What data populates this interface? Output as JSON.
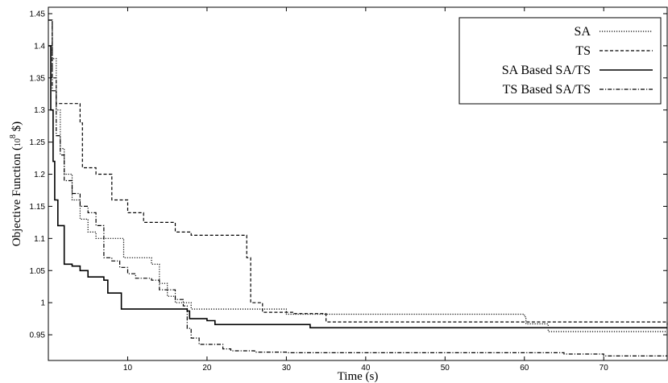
{
  "chart_data": {
    "type": "line",
    "xlabel": "Time (s)",
    "ylabel_main": "Objective Function (",
    "ylabel_unit": "10",
    "ylabel_exp": "8",
    "ylabel_tail": " $)",
    "xlim": [
      0,
      78
    ],
    "ylim": [
      0.91,
      1.46
    ],
    "xticks": [
      10,
      20,
      30,
      40,
      50,
      60,
      70
    ],
    "yticks": [
      0.95,
      1,
      1.05,
      1.1,
      1.15,
      1.2,
      1.25,
      1.3,
      1.35,
      1.4,
      1.45
    ],
    "grid": false,
    "legend_position": "top-right",
    "series": [
      {
        "name": "SA",
        "dash": "dotted",
        "points": [
          [
            0,
            1.44
          ],
          [
            0.5,
            1.38
          ],
          [
            1,
            1.3
          ],
          [
            1.5,
            1.24
          ],
          [
            2,
            1.2
          ],
          [
            3,
            1.16
          ],
          [
            4,
            1.13
          ],
          [
            5,
            1.11
          ],
          [
            6,
            1.1
          ],
          [
            9,
            1.1
          ],
          [
            9.5,
            1.07
          ],
          [
            13,
            1.06
          ],
          [
            14,
            1.03
          ],
          [
            15,
            1.01
          ],
          [
            16,
            1.0
          ],
          [
            18,
            0.99
          ],
          [
            30,
            0.982
          ],
          [
            60,
            0.978
          ],
          [
            60.2,
            0.967
          ],
          [
            63,
            0.955
          ],
          [
            78,
            0.955
          ]
        ]
      },
      {
        "name": "TS",
        "dash": "dashed",
        "points": [
          [
            0,
            1.44
          ],
          [
            0.5,
            1.35
          ],
          [
            1,
            1.31
          ],
          [
            4,
            1.28
          ],
          [
            4.3,
            1.21
          ],
          [
            6,
            1.2
          ],
          [
            8,
            1.16
          ],
          [
            10,
            1.14
          ],
          [
            12,
            1.125
          ],
          [
            16,
            1.11
          ],
          [
            18,
            1.105
          ],
          [
            23,
            1.105
          ],
          [
            25,
            1.07
          ],
          [
            25.5,
            1.0
          ],
          [
            27,
            0.985
          ],
          [
            31,
            0.983
          ],
          [
            35,
            0.97
          ],
          [
            78,
            0.965
          ]
        ]
      },
      {
        "name": "SA Based SA/TS",
        "dash": "solid",
        "points": [
          [
            0,
            1.4
          ],
          [
            0.3,
            1.3
          ],
          [
            0.6,
            1.22
          ],
          [
            0.8,
            1.16
          ],
          [
            1.2,
            1.12
          ],
          [
            2,
            1.06
          ],
          [
            3,
            1.057
          ],
          [
            4,
            1.05
          ],
          [
            5,
            1.04
          ],
          [
            7,
            1.035
          ],
          [
            7.5,
            1.015
          ],
          [
            9,
            1.015
          ],
          [
            9.2,
            0.99
          ],
          [
            10,
            0.99
          ],
          [
            17.5,
            0.987
          ],
          [
            17.8,
            0.975
          ],
          [
            20,
            0.972
          ],
          [
            21,
            0.966
          ],
          [
            33,
            0.961
          ],
          [
            78,
            0.961
          ]
        ]
      },
      {
        "name": "TS Based SA/TS",
        "dash": "dashdot",
        "points": [
          [
            0,
            1.44
          ],
          [
            0.5,
            1.33
          ],
          [
            1,
            1.26
          ],
          [
            1.5,
            1.23
          ],
          [
            2,
            1.19
          ],
          [
            3,
            1.17
          ],
          [
            4,
            1.15
          ],
          [
            5,
            1.14
          ],
          [
            6,
            1.12
          ],
          [
            7,
            1.07
          ],
          [
            8,
            1.065
          ],
          [
            9,
            1.055
          ],
          [
            10,
            1.045
          ],
          [
            11,
            1.038
          ],
          [
            13,
            1.035
          ],
          [
            14,
            1.02
          ],
          [
            16,
            1.005
          ],
          [
            17,
            0.995
          ],
          [
            17.5,
            0.96
          ],
          [
            18,
            0.945
          ],
          [
            19,
            0.935
          ],
          [
            22,
            0.928
          ],
          [
            23,
            0.925
          ],
          [
            26,
            0.923
          ],
          [
            30,
            0.922
          ],
          [
            65,
            0.92
          ],
          [
            70,
            0.917
          ],
          [
            78,
            0.917
          ]
        ]
      }
    ]
  }
}
